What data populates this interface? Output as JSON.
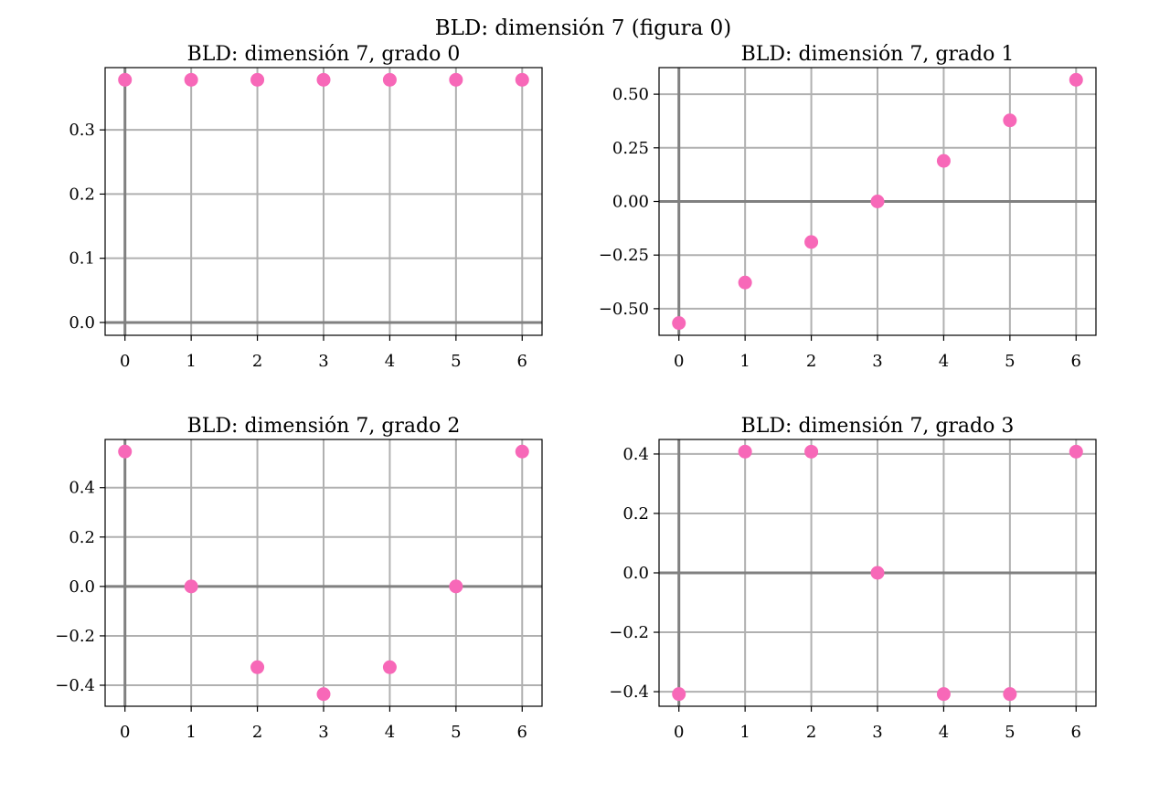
{
  "figure": {
    "suptitle": "BLD: dimensión 7 (figura 0)"
  },
  "colors": {
    "point": "#f768b8",
    "grid": "#b0b0b0",
    "axis_line": "#808080",
    "frame": "#000000"
  },
  "chart_data": [
    {
      "type": "scatter",
      "title": "BLD: dimensión 7, grado 0",
      "x": [
        0,
        1,
        2,
        3,
        4,
        5,
        6
      ],
      "y": [
        0.378,
        0.378,
        0.378,
        0.378,
        0.378,
        0.378,
        0.378
      ],
      "xlim": [
        -0.3,
        6.3
      ],
      "ylim": [
        -0.02,
        0.397
      ],
      "xticks": [
        0,
        1,
        2,
        3,
        4,
        5,
        6
      ],
      "xtick_labels": [
        "0",
        "1",
        "2",
        "3",
        "4",
        "5",
        "6"
      ],
      "yticks": [
        0.0,
        0.1,
        0.2,
        0.3
      ],
      "ytick_labels": [
        "0.0",
        "0.1",
        "0.2",
        "0.3"
      ],
      "grid": true
    },
    {
      "type": "scatter",
      "title": "BLD: dimensión 7, grado 1",
      "x": [
        0,
        1,
        2,
        3,
        4,
        5,
        6
      ],
      "y": [
        -0.567,
        -0.378,
        -0.189,
        0.0,
        0.189,
        0.378,
        0.567
      ],
      "xlim": [
        -0.3,
        6.3
      ],
      "ylim": [
        -0.624,
        0.624
      ],
      "xticks": [
        0,
        1,
        2,
        3,
        4,
        5,
        6
      ],
      "xtick_labels": [
        "0",
        "1",
        "2",
        "3",
        "4",
        "5",
        "6"
      ],
      "yticks": [
        -0.5,
        -0.25,
        0.0,
        0.25,
        0.5
      ],
      "ytick_labels": [
        "−0.50",
        "−0.25",
        "0.00",
        "0.25",
        "0.50"
      ],
      "grid": true
    },
    {
      "type": "scatter",
      "title": "BLD: dimensión 7, grado 2",
      "x": [
        0,
        1,
        2,
        3,
        4,
        5,
        6
      ],
      "y": [
        0.546,
        0.0,
        -0.327,
        -0.436,
        -0.327,
        0.0,
        0.546
      ],
      "xlim": [
        -0.3,
        6.3
      ],
      "ylim": [
        -0.485,
        0.595
      ],
      "xticks": [
        0,
        1,
        2,
        3,
        4,
        5,
        6
      ],
      "xtick_labels": [
        "0",
        "1",
        "2",
        "3",
        "4",
        "5",
        "6"
      ],
      "yticks": [
        -0.4,
        -0.2,
        0.0,
        0.2,
        0.4
      ],
      "ytick_labels": [
        "−0.4",
        "−0.2",
        "0.0",
        "0.2",
        "0.4"
      ],
      "grid": true
    },
    {
      "type": "scatter",
      "title": "BLD: dimensión 7, grado 3",
      "x": [
        0,
        1,
        2,
        3,
        4,
        5,
        6
      ],
      "y": [
        -0.408,
        0.408,
        0.408,
        0.0,
        -0.408,
        -0.408,
        0.408
      ],
      "xlim": [
        -0.3,
        6.3
      ],
      "ylim": [
        -0.449,
        0.449
      ],
      "xticks": [
        0,
        1,
        2,
        3,
        4,
        5,
        6
      ],
      "xtick_labels": [
        "0",
        "1",
        "2",
        "3",
        "4",
        "5",
        "6"
      ],
      "yticks": [
        -0.4,
        -0.2,
        0.0,
        0.2,
        0.4
      ],
      "ytick_labels": [
        "−0.4",
        "−0.2",
        "0.0",
        "0.2",
        "0.4"
      ],
      "grid": true
    }
  ]
}
